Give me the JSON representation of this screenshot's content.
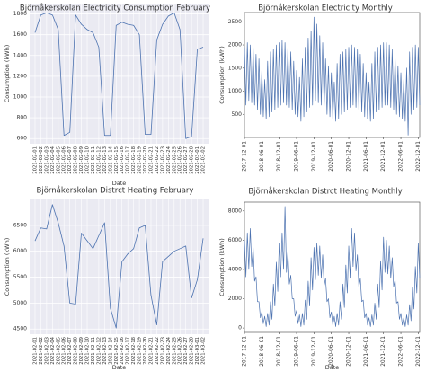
{
  "chart_data": [
    {
      "type": "line",
      "title": "Björnåkerskolan Electricity Consumption February",
      "xlabel": "Date",
      "ylabel": "Consumption (kWh)",
      "color": "#4c72b0",
      "background": "#eaeaf2",
      "grid": true,
      "categories": [
        "2021-02-01",
        "2021-02-02",
        "2021-02-03",
        "2021-02-04",
        "2021-02-05",
        "2021-02-06",
        "2021-02-07",
        "2021-02-08",
        "2021-02-09",
        "2021-02-10",
        "2021-02-11",
        "2021-02-12",
        "2021-02-13",
        "2021-02-14",
        "2021-02-15",
        "2021-02-16",
        "2021-02-17",
        "2021-02-18",
        "2021-02-19",
        "2021-02-20",
        "2021-02-21",
        "2021-02-22",
        "2021-02-23",
        "2021-02-24",
        "2021-02-25",
        "2021-02-26",
        "2021-02-27",
        "2021-02-28",
        "2021-03-01",
        "2021-03-02"
      ],
      "values": [
        1620,
        1790,
        1810,
        1790,
        1650,
        630,
        660,
        1790,
        1700,
        1650,
        1620,
        1480,
        630,
        630,
        1690,
        1720,
        1700,
        1690,
        1600,
        640,
        640,
        1550,
        1700,
        1780,
        1810,
        1650,
        600,
        620,
        1460,
        1480
      ],
      "ylim": [
        550,
        1900
      ],
      "yticks": [
        600,
        800,
        1000,
        1200,
        1400,
        1600,
        1800
      ]
    },
    {
      "type": "line",
      "title": "Björnåkerskolan Electricity Monthly",
      "ylabel": "Consumption (kWh)",
      "color": "#4c72b0",
      "background": "#ffffff",
      "grid": false,
      "values": [
        1950,
        700,
        2050,
        800,
        2000,
        750,
        1950,
        700,
        1800,
        600,
        1700,
        500,
        1450,
        450,
        1250,
        400,
        1650,
        450,
        1850,
        550,
        1900,
        600,
        2000,
        650,
        2050,
        700,
        2100,
        750,
        2050,
        700,
        1950,
        650,
        1850,
        600,
        1650,
        500,
        1450,
        450,
        1300,
        350,
        1700,
        450,
        1950,
        550,
        2150,
        650,
        2300,
        700,
        2600,
        800,
        2450,
        750,
        2200,
        700,
        2050,
        650,
        1700,
        500,
        1550,
        450,
        1400,
        400,
        1200,
        350,
        1600,
        400,
        1800,
        500,
        1850,
        550,
        1900,
        600,
        1950,
        650,
        2000,
        700,
        1950,
        650,
        1900,
        600,
        1800,
        550,
        1600,
        450,
        1400,
        400,
        1200,
        350,
        1600,
        400,
        1850,
        550,
        1950,
        600,
        2000,
        650,
        2050,
        700,
        2050,
        700,
        2000,
        650,
        1900,
        600,
        1750,
        500,
        1550,
        450,
        1400,
        400,
        1250,
        350,
        1500,
        50,
        1850,
        500,
        1950,
        600,
        2000,
        650,
        1950,
        700
      ],
      "xlim": [
        0,
        121
      ],
      "xticks": [
        {
          "value": 0,
          "label": "2017-12-01"
        },
        {
          "value": 12,
          "label": "2018-06-01"
        },
        {
          "value": 24,
          "label": "2018-12-01"
        },
        {
          "value": 36,
          "label": "2019-06-01"
        },
        {
          "value": 48,
          "label": "2019-12-01"
        },
        {
          "value": 60,
          "label": "2020-06-01"
        },
        {
          "value": 72,
          "label": "2020-12-01"
        },
        {
          "value": 84,
          "label": "2021-06-01"
        },
        {
          "value": 96,
          "label": "2021-12-01"
        },
        {
          "value": 108,
          "label": "2022-06-01"
        },
        {
          "value": 120,
          "label": "2022-12-01"
        }
      ],
      "ylim": [
        0,
        2700
      ],
      "yticks": [
        500,
        1000,
        1500,
        2000,
        2500
      ]
    },
    {
      "type": "line",
      "title": "Björnåkerskolan Distrct Heating February",
      "xlabel": "Date",
      "ylabel": "Consumption (kWh)",
      "color": "#4c72b0",
      "background": "#eaeaf2",
      "grid": true,
      "categories": [
        "2021-02-01",
        "2021-02-02",
        "2021-02-03",
        "2021-02-04",
        "2021-02-05",
        "2021-02-06",
        "2021-02-07",
        "2021-02-08",
        "2021-02-09",
        "2021-02-10",
        "2021-02-11",
        "2021-02-12",
        "2021-02-13",
        "2021-02-14",
        "2021-02-15",
        "2021-02-16",
        "2021-02-17",
        "2021-02-18",
        "2021-02-19",
        "2021-02-20",
        "2021-02-21",
        "2021-02-22",
        "2021-02-23",
        "2021-02-24",
        "2021-02-25",
        "2021-02-26",
        "2021-02-27",
        "2021-02-28",
        "2021-03-01",
        "2021-03-02"
      ],
      "values": [
        6200,
        6450,
        6430,
        6900,
        6550,
        6100,
        5000,
        4980,
        6350,
        6200,
        6050,
        6300,
        6550,
        4900,
        4520,
        5800,
        5950,
        6050,
        6450,
        6500,
        5150,
        4580,
        5800,
        5900,
        6000,
        6050,
        6100,
        5100,
        5450,
        6250
      ],
      "ylim": [
        4400,
        7000
      ],
      "yticks": [
        4500,
        5000,
        5500,
        6000,
        6500
      ]
    },
    {
      "type": "line",
      "title": "Björnåkerskolan Distrct Heating Monthly",
      "xlabel": "Date",
      "ylabel": "Consumption (kWh)",
      "color": "#4c72b0",
      "background": "#ffffff",
      "grid": false,
      "values": [
        6000,
        3500,
        6500,
        4000,
        6800,
        4200,
        5500,
        3200,
        3500,
        1800,
        1800,
        700,
        1100,
        300,
        800,
        100,
        1000,
        200,
        1800,
        600,
        3000,
        1500,
        4500,
        2500,
        5800,
        3500,
        6500,
        4000,
        8300,
        3800,
        5200,
        3000,
        3600,
        2000,
        2000,
        800,
        1200,
        300,
        900,
        100,
        1000,
        200,
        1900,
        600,
        3200,
        1500,
        4800,
        2600,
        5500,
        3300,
        5800,
        3600,
        5600,
        3400,
        5000,
        2900,
        3400,
        1800,
        2000,
        700,
        1100,
        200,
        800,
        100,
        1000,
        200,
        1800,
        600,
        3000,
        1400,
        4300,
        2400,
        5600,
        3400,
        6800,
        4200,
        6500,
        3900,
        5000,
        2800,
        3400,
        1800,
        1900,
        700,
        1000,
        200,
        700,
        100,
        900,
        200,
        1700,
        600,
        3000,
        1400,
        4600,
        2600,
        6200,
        3800,
        6000,
        3700,
        5600,
        3400,
        4800,
        2800,
        3300,
        1700,
        1800,
        600,
        1000,
        200,
        700,
        100,
        900,
        200,
        1600,
        500,
        2800,
        1300,
        4200,
        2400,
        5800,
        3400
      ],
      "xlim": [
        0,
        121
      ],
      "xticks": [
        {
          "value": 0,
          "label": "2017-12-01"
        },
        {
          "value": 12,
          "label": "2018-06-01"
        },
        {
          "value": 24,
          "label": "2018-12-01"
        },
        {
          "value": 36,
          "label": "2019-06-01"
        },
        {
          "value": 48,
          "label": "2019-12-01"
        },
        {
          "value": 60,
          "label": "2020-06-01"
        },
        {
          "value": 72,
          "label": "2020-12-01"
        },
        {
          "value": 84,
          "label": "2021-06-01"
        },
        {
          "value": 96,
          "label": "2021-12-01"
        },
        {
          "value": 108,
          "label": "2022-06-01"
        },
        {
          "value": 120,
          "label": "2022-12-01"
        }
      ],
      "ylim": [
        -300,
        8600
      ],
      "yticks": [
        0,
        2000,
        4000,
        6000,
        8000
      ]
    }
  ]
}
